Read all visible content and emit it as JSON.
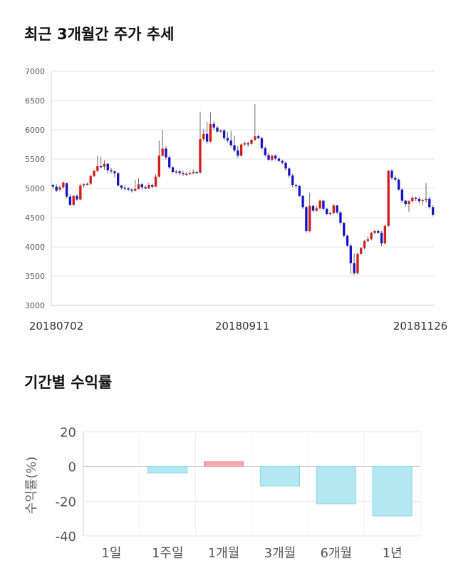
{
  "sections": {
    "price_title": "최근 3개월간 주가 추세",
    "return_title": "기간별 수익률"
  },
  "chart_data": [
    {
      "type": "candlestick",
      "title": "최근 3개월간 주가 추세",
      "ylim": [
        3000,
        7000
      ],
      "y_ticks": [
        3000,
        3500,
        4000,
        4500,
        5000,
        5500,
        6000,
        6500,
        7000
      ],
      "x_tick_labels": [
        "20180702",
        "20180911",
        "20181126"
      ],
      "grid": true,
      "colors": {
        "up": "#d21f1f",
        "down": "#1515c8",
        "wick": "#666666"
      },
      "candles": [
        [
          5060,
          5030,
          5080,
          4990
        ],
        [
          5030,
          4960,
          5070,
          4940
        ],
        [
          4980,
          5020,
          5050,
          4950
        ],
        [
          5020,
          5100,
          5120,
          4990
        ],
        [
          5090,
          4860,
          5100,
          4830
        ],
        [
          4860,
          4720,
          4900,
          4700
        ],
        [
          4720,
          4870,
          4890,
          4700
        ],
        [
          4870,
          4810,
          4900,
          4790
        ],
        [
          4810,
          5050,
          5080,
          4800
        ],
        [
          5050,
          5070,
          5090,
          5010
        ],
        [
          5070,
          5080,
          5100,
          5050
        ],
        [
          5080,
          5210,
          5230,
          5060
        ],
        [
          5210,
          5300,
          5320,
          5190
        ],
        [
          5300,
          5380,
          5560,
          5280
        ],
        [
          5380,
          5370,
          5540,
          5340
        ],
        [
          5370,
          5420,
          5480,
          5320
        ],
        [
          5420,
          5310,
          5440,
          5250
        ],
        [
          5310,
          5290,
          5350,
          5260
        ],
        [
          5290,
          5260,
          5310,
          5190
        ],
        [
          5260,
          5050,
          5270,
          5030
        ],
        [
          5050,
          5010,
          5060,
          4980
        ],
        [
          5010,
          5000,
          5050,
          4960
        ],
        [
          5000,
          4980,
          5020,
          4950
        ],
        [
          4980,
          4960,
          5000,
          4930
        ],
        [
          4960,
          4990,
          5150,
          4950
        ],
        [
          4990,
          5070,
          5180,
          4980
        ],
        [
          5070,
          5020,
          5100,
          4980
        ],
        [
          5020,
          5000,
          5060,
          4980
        ],
        [
          5000,
          5060,
          5100,
          4990
        ],
        [
          5060,
          5030,
          5080,
          5000
        ],
        [
          5030,
          5200,
          5240,
          5020
        ],
        [
          5200,
          5560,
          5820,
          5180
        ],
        [
          5560,
          5680,
          6000,
          5540
        ],
        [
          5680,
          5530,
          5720,
          5490
        ],
        [
          5530,
          5360,
          5560,
          5330
        ],
        [
          5360,
          5280,
          5380,
          5260
        ],
        [
          5280,
          5290,
          5320,
          5250
        ],
        [
          5290,
          5260,
          5320,
          5230
        ],
        [
          5260,
          5250,
          5300,
          5210
        ],
        [
          5250,
          5250,
          5280,
          5210
        ],
        [
          5250,
          5260,
          5290,
          5220
        ],
        [
          5260,
          5280,
          5320,
          5240
        ],
        [
          5280,
          5270,
          5300,
          5250
        ],
        [
          5270,
          5840,
          6310,
          5250
        ],
        [
          5840,
          5930,
          6010,
          5810
        ],
        [
          5930,
          5800,
          6140,
          5760
        ],
        [
          5800,
          6100,
          6300,
          5780
        ],
        [
          6100,
          6040,
          6150,
          6000
        ],
        [
          6040,
          5970,
          6060,
          5950
        ],
        [
          5970,
          5990,
          6010,
          5950
        ],
        [
          5990,
          5860,
          6010,
          5820
        ],
        [
          5860,
          5820,
          5960,
          5780
        ],
        [
          5820,
          5740,
          5980,
          5700
        ],
        [
          5740,
          5650,
          5900,
          5620
        ],
        [
          5650,
          5560,
          5720,
          5520
        ],
        [
          5560,
          5750,
          5770,
          5540
        ],
        [
          5750,
          5770,
          5800,
          5720
        ],
        [
          5770,
          5760,
          5800,
          5710
        ],
        [
          5760,
          5830,
          5850,
          5740
        ],
        [
          5830,
          5890,
          6440,
          5810
        ],
        [
          5890,
          5860,
          5920,
          5840
        ],
        [
          5860,
          5690,
          5880,
          5660
        ],
        [
          5690,
          5570,
          5720,
          5540
        ],
        [
          5570,
          5490,
          5610,
          5470
        ],
        [
          5490,
          5560,
          5580,
          5460
        ],
        [
          5560,
          5510,
          5580,
          5480
        ],
        [
          5510,
          5470,
          5530,
          5450
        ],
        [
          5470,
          5440,
          5490,
          5410
        ],
        [
          5440,
          5340,
          5460,
          5300
        ],
        [
          5340,
          5220,
          5360,
          5180
        ],
        [
          5220,
          5060,
          5250,
          5020
        ],
        [
          5060,
          5040,
          5080,
          5000
        ],
        [
          5040,
          4870,
          5060,
          4850
        ],
        [
          4870,
          4680,
          4890,
          4650
        ],
        [
          4680,
          4270,
          4700,
          4240
        ],
        [
          4270,
          4700,
          4930,
          4250
        ],
        [
          4700,
          4620,
          4720,
          4590
        ],
        [
          4620,
          4660,
          4700,
          4600
        ],
        [
          4660,
          4790,
          4810,
          4640
        ],
        [
          4790,
          4650,
          4800,
          4620
        ],
        [
          4650,
          4560,
          4670,
          4540
        ],
        [
          4560,
          4580,
          4600,
          4540
        ],
        [
          4580,
          4710,
          4730,
          4560
        ],
        [
          4710,
          4590,
          4720,
          4560
        ],
        [
          4590,
          4410,
          4610,
          4380
        ],
        [
          4410,
          4190,
          4430,
          4160
        ],
        [
          4190,
          4020,
          4210,
          4000
        ],
        [
          4020,
          3720,
          4050,
          3540
        ],
        [
          3720,
          3550,
          3890,
          3520
        ],
        [
          3550,
          3880,
          3900,
          3530
        ],
        [
          3880,
          3980,
          4000,
          3860
        ],
        [
          3980,
          4100,
          4120,
          3960
        ],
        [
          4100,
          4130,
          4180,
          4080
        ],
        [
          4130,
          4240,
          4260,
          4110
        ],
        [
          4240,
          4270,
          4290,
          4220
        ],
        [
          4270,
          4240,
          4290,
          4220
        ],
        [
          4240,
          4060,
          4270,
          4010
        ],
        [
          4060,
          4360,
          4380,
          4040
        ],
        [
          4360,
          5300,
          5320,
          4340
        ],
        [
          5300,
          5180,
          5330,
          5150
        ],
        [
          5180,
          5150,
          5220,
          5120
        ],
        [
          5150,
          4980,
          5170,
          4960
        ],
        [
          4980,
          4790,
          5000,
          4760
        ],
        [
          4790,
          4730,
          4810,
          4680
        ],
        [
          4730,
          4780,
          4800,
          4600
        ],
        [
          4780,
          4840,
          4860,
          4760
        ],
        [
          4840,
          4820,
          4860,
          4780
        ],
        [
          4820,
          4780,
          4850,
          4740
        ],
        [
          4780,
          4800,
          4820,
          4720
        ],
        [
          4800,
          4820,
          5090,
          4760
        ],
        [
          4820,
          4680,
          4860,
          4650
        ],
        [
          4680,
          4550,
          4720,
          4520
        ]
      ]
    },
    {
      "type": "bar",
      "title": "기간별 수익률",
      "ylabel": "수익률(%)",
      "ylim": [
        -40,
        20
      ],
      "y_ticks": [
        20,
        0,
        -20,
        -40
      ],
      "categories": [
        "1일",
        "1주일",
        "1개월",
        "3개월",
        "6개월",
        "1년"
      ],
      "values": [
        0,
        -3.8,
        2.8,
        -11.2,
        -21.5,
        -28.5
      ],
      "colors": {
        "positive": "#f7a9ae",
        "negative": "#b3e8f3"
      }
    }
  ]
}
